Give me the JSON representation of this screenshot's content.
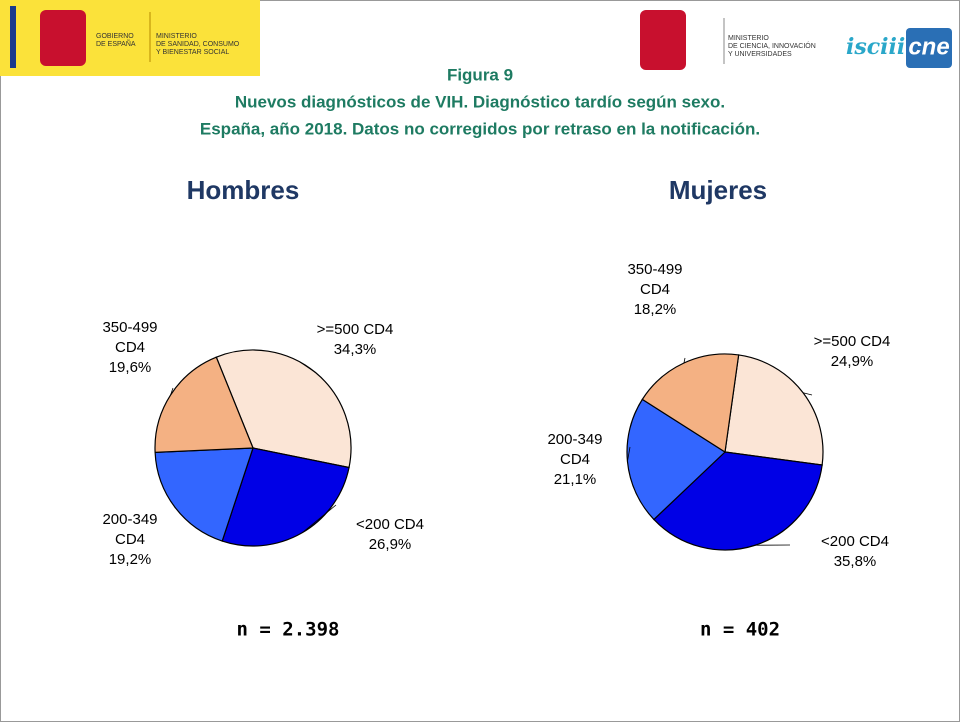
{
  "header": {
    "left_logo": [
      "GOBIERNO",
      "DE ESPAÑA"
    ],
    "left_ministry": [
      "MINISTERIO",
      "DE SANIDAD, CONSUMO",
      "Y BIENESTAR SOCIAL"
    ],
    "right_ministry": [
      "MINISTERIO",
      "DE CIENCIA, INNOVACIÓN",
      "Y UNIVERSIDADES"
    ],
    "isciii": "isciii",
    "cne": "cne",
    "figure": "Figura 9",
    "title": [
      "Nuevos diagnósticos de VIH. Diagnóstico tardío según sexo.",
      "España, año 2018. Datos no corregidos por retraso en la notificación."
    ]
  },
  "chart_data": [
    {
      "type": "pie",
      "title": "Hombres",
      "annotation": "n = 2.398",
      "categories": [
        ">=500 CD4",
        "<200 CD4",
        "200-349 CD4",
        "350-499 CD4"
      ],
      "values": [
        34.3,
        26.9,
        19.2,
        19.6
      ],
      "value_labels": [
        "34,3%",
        "26,9%",
        "19,2%",
        "19,6%"
      ],
      "colors": [
        "#fbe5d6",
        "#0000e6",
        "#3366ff",
        "#f4b183"
      ]
    },
    {
      "type": "pie",
      "title": "Mujeres",
      "annotation": "n = 402",
      "categories": [
        ">=500 CD4",
        "<200 CD4",
        "200-349 CD4",
        "350-499 CD4"
      ],
      "values": [
        24.9,
        35.8,
        21.1,
        18.2
      ],
      "value_labels": [
        "24,9%",
        "35,8%",
        "21,1%",
        "18,2%"
      ],
      "colors": [
        "#fbe5d6",
        "#0000e6",
        "#3366ff",
        "#f4b183"
      ]
    }
  ]
}
